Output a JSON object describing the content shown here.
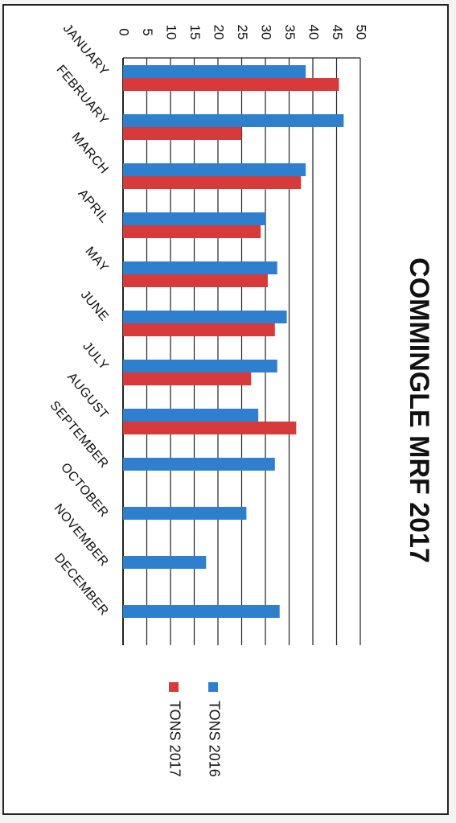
{
  "chart_data": {
    "type": "bar",
    "orientation": "horizontal",
    "title": "COMMINGLE MRF 2017",
    "categories": [
      "JANUARY",
      "FEBRUARY",
      "MARCH",
      "APRIL",
      "MAY",
      "JUNE",
      "JULY",
      "AUGUST",
      "SEPTEMBER",
      "OCTOBER",
      "NOVEMBER",
      "DECEMBER"
    ],
    "series": [
      {
        "name": "TONS 2016",
        "color": "#2f7fcf",
        "values": [
          38.5,
          46.5,
          38.5,
          30,
          32.5,
          34.5,
          32.5,
          28.5,
          32,
          26,
          17.5,
          33
        ]
      },
      {
        "name": "TONS 2017",
        "color": "#d63a3a",
        "values": [
          45.5,
          25,
          37.5,
          29,
          30.5,
          32,
          27,
          36.5,
          null,
          null,
          null,
          null
        ]
      }
    ],
    "value_axis": {
      "min": 0,
      "max": 50,
      "step": 5,
      "ticks": [
        "0",
        "5",
        "10",
        "15",
        "20",
        "25",
        "30",
        "35",
        "40",
        "45",
        "50"
      ]
    },
    "grid": true,
    "legend_position": "right"
  }
}
